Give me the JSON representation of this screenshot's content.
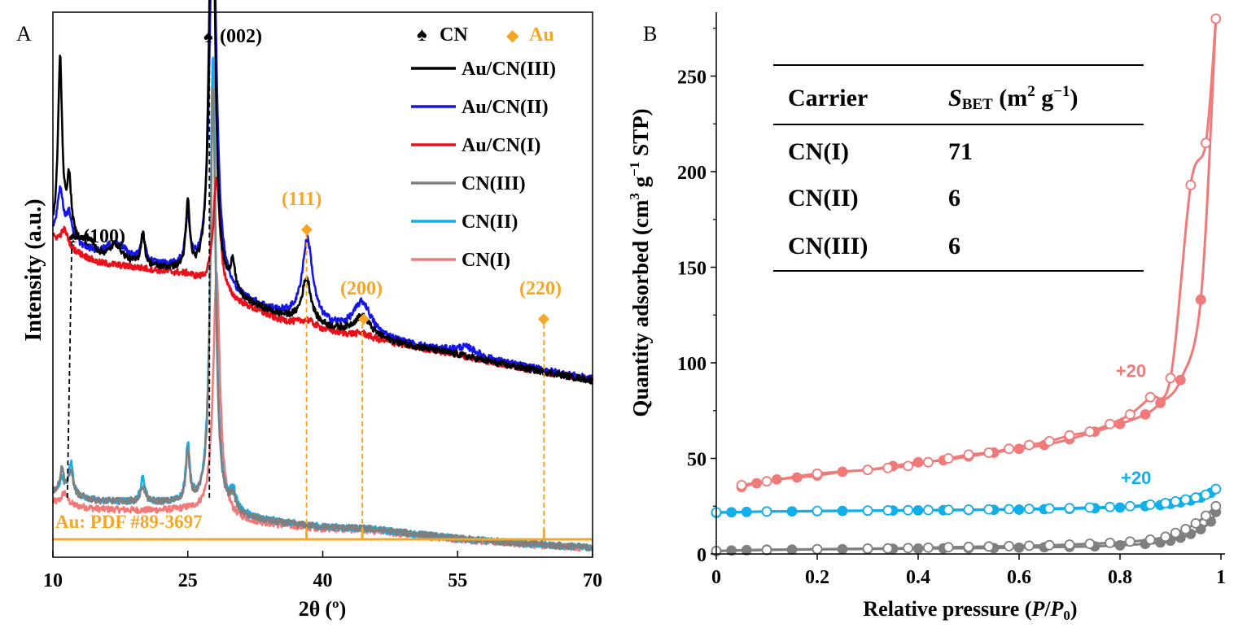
{
  "chart_data": [
    {
      "panel_label": "A",
      "type": "line",
      "xlabel_prefix": "2",
      "xlabel_theta": "θ",
      "xlabel_unit": "(º)",
      "ylabel": "Intensity (a.u.)",
      "xlim": [
        10,
        70
      ],
      "x_ticks": [
        "10",
        "25",
        "40",
        "55",
        "70"
      ],
      "legend_markers": [
        {
          "symbol": "♠",
          "label": "CN",
          "color": "#000000"
        },
        {
          "symbol": "◆",
          "label": "Au",
          "color": "#f5a623"
        }
      ],
      "series": [
        {
          "name": "Au/CN(III)",
          "color": "#000000",
          "group": "upper",
          "baseline": [
            [
              10,
              0.395
            ],
            [
              12,
              0.388
            ],
            [
              15,
              0.37
            ],
            [
              20,
              0.36
            ],
            [
              25,
              0.352
            ],
            [
              30,
              0.32
            ],
            [
              35,
              0.3
            ],
            [
              40,
              0.285
            ],
            [
              45,
              0.272
            ],
            [
              50,
              0.262
            ],
            [
              55,
              0.252
            ],
            [
              60,
              0.24
            ],
            [
              65,
              0.23
            ],
            [
              70,
              0.22
            ]
          ],
          "peaks": [
            [
              10.8,
              0.22,
              0.28
            ],
            [
              11.8,
              0.07,
              0.3
            ],
            [
              14,
              0.015,
              0.8
            ],
            [
              17,
              0.02,
              0.8
            ],
            [
              20,
              0.04,
              0.25
            ],
            [
              25,
              0.08,
              0.25
            ],
            [
              27.7,
              0.62,
              0.35
            ],
            [
              30,
              0.04,
              0.3
            ],
            [
              38.2,
              0.055,
              0.6
            ],
            [
              44.4,
              0.025,
              1.2
            ]
          ]
        },
        {
          "name": "Au/CN(II)",
          "color": "#1515e8",
          "group": "upper",
          "baseline": [
            [
              10,
              0.395
            ],
            [
              12,
              0.388
            ],
            [
              15,
              0.372
            ],
            [
              20,
              0.362
            ],
            [
              25,
              0.355
            ],
            [
              30,
              0.322
            ],
            [
              35,
              0.302
            ],
            [
              40,
              0.287
            ],
            [
              45,
              0.274
            ],
            [
              50,
              0.263
            ],
            [
              55,
              0.253
            ],
            [
              60,
              0.242
            ],
            [
              65,
              0.232
            ],
            [
              70,
              0.222
            ]
          ],
          "peaks": [
            [
              10.8,
              0.06,
              0.4
            ],
            [
              11.8,
              0.03,
              0.4
            ],
            [
              17,
              0.02,
              1.5
            ],
            [
              20,
              0.03,
              0.3
            ],
            [
              25,
              0.06,
              0.3
            ],
            [
              27.8,
              0.49,
              0.45
            ],
            [
              38.3,
              0.1,
              0.7
            ],
            [
              44.4,
              0.04,
              1.2
            ],
            [
              56,
              0.01,
              1.5
            ]
          ]
        },
        {
          "name": "Au/CN(I)",
          "color": "#e8101a",
          "group": "upper",
          "baseline": [
            [
              10,
              0.395
            ],
            [
              12,
              0.38
            ],
            [
              15,
              0.365
            ],
            [
              20,
              0.358
            ],
            [
              25,
              0.35
            ],
            [
              30,
              0.318
            ],
            [
              35,
              0.295
            ],
            [
              40,
              0.282
            ],
            [
              45,
              0.272
            ],
            [
              50,
              0.262
            ],
            [
              55,
              0.252
            ],
            [
              60,
              0.24
            ],
            [
              65,
              0.23
            ],
            [
              70,
              0.222
            ]
          ],
          "peaks": [
            [
              11.3,
              0.02,
              0.5
            ],
            [
              28.2,
              0.14,
              0.45
            ],
            [
              38.3,
              0.008,
              1.0
            ],
            [
              44.4,
              0.005,
              1.0
            ]
          ]
        },
        {
          "name": "CN(III)",
          "color": "#7f7f7f",
          "group": "lower",
          "baseline": [
            [
              10,
              0.062
            ],
            [
              12,
              0.058
            ],
            [
              15,
              0.052
            ],
            [
              20,
              0.05
            ],
            [
              25,
              0.048
            ],
            [
              30,
              0.032
            ],
            [
              35,
              0.025
            ],
            [
              40,
              0.02
            ],
            [
              45,
              0.018
            ],
            [
              50,
              0.012
            ],
            [
              55,
              0.006
            ],
            [
              60,
              0.002
            ],
            [
              65,
              -0.002
            ],
            [
              70,
              -0.005
            ]
          ],
          "peaks": [
            [
              11.0,
              0.03,
              0.3
            ],
            [
              12.0,
              0.03,
              0.3
            ],
            [
              20,
              0.02,
              0.3
            ],
            [
              25,
              0.06,
              0.25
            ],
            [
              27.8,
              0.52,
              0.35
            ],
            [
              30,
              0.02,
              0.4
            ]
          ]
        },
        {
          "name": "CN(II)",
          "color": "#12aee8",
          "group": "lower",
          "baseline": [
            [
              10,
              0.062
            ],
            [
              12,
              0.058
            ],
            [
              15,
              0.052
            ],
            [
              20,
              0.05
            ],
            [
              25,
              0.048
            ],
            [
              30,
              0.034
            ],
            [
              35,
              0.026
            ],
            [
              40,
              0.02
            ],
            [
              45,
              0.018
            ],
            [
              50,
              0.012
            ],
            [
              55,
              0.006
            ],
            [
              60,
              0.002
            ],
            [
              65,
              -0.002
            ],
            [
              70,
              -0.005
            ]
          ],
          "peaks": [
            [
              11.0,
              0.02,
              0.3
            ],
            [
              12.0,
              0.04,
              0.3
            ],
            [
              20,
              0.03,
              0.3
            ],
            [
              25,
              0.07,
              0.25
            ],
            [
              27.8,
              0.56,
              0.35
            ],
            [
              30,
              0.025,
              0.4
            ]
          ]
        },
        {
          "name": "CN(I)",
          "color": "#f07a7a",
          "group": "lower",
          "baseline": [
            [
              10,
              0.05
            ],
            [
              12,
              0.046
            ],
            [
              15,
              0.042
            ],
            [
              20,
              0.04
            ],
            [
              25,
              0.04
            ],
            [
              30,
              0.028
            ],
            [
              35,
              0.022
            ],
            [
              40,
              0.018
            ],
            [
              45,
              0.016
            ],
            [
              50,
              0.01
            ],
            [
              55,
              0.005
            ],
            [
              60,
              0.001
            ],
            [
              65,
              -0.003
            ],
            [
              70,
              -0.006
            ]
          ],
          "peaks": [
            [
              11.3,
              0.015,
              0.4
            ],
            [
              28.2,
              0.3,
              0.45
            ]
          ]
        }
      ],
      "annotations": [
        {
          "label": "(100)",
          "symbol": "♠",
          "x": 12.1,
          "color": "#000000"
        },
        {
          "label": "(002)",
          "symbol": "♠",
          "x": 27.4,
          "color": "#000000"
        },
        {
          "label": "(111)",
          "symbol": "◆",
          "x": 38.2,
          "color": "#f5a623"
        },
        {
          "label": "(200)",
          "symbol": "◆",
          "x": 44.4,
          "color": "#f5a623"
        },
        {
          "label": "(220)",
          "symbol": "◆",
          "x": 64.6,
          "color": "#f5a623"
        }
      ],
      "reference_label": "Au: PDF #89-3697",
      "reference_lines": [
        38.2,
        44.4,
        64.6
      ],
      "reference_color": "#f5a623"
    },
    {
      "panel_label": "B",
      "type": "scatter",
      "xlabel_text": "Relative pressure (",
      "xlabel_var_p": "P",
      "xlabel_slash": "/",
      "xlabel_var_p0": "P",
      "xlabel_sub0": "0",
      "xlabel_close": ")",
      "ylabel_main": "Quantity  adsorbed (cm",
      "ylabel_sup3": "3",
      "ylabel_g": " g",
      "ylabel_sup_neg1": "−1",
      "ylabel_tail": " STP)",
      "xlim": [
        0,
        1
      ],
      "ylim": [
        0,
        280
      ],
      "x_ticks": [
        "0",
        "0.2",
        "0.4",
        "0.6",
        "0.8",
        "1"
      ],
      "y_ticks": [
        "0",
        "50",
        "100",
        "150",
        "200",
        "250"
      ],
      "offset_labels": [
        {
          "text": "+20",
          "color": "#f07a7a",
          "x": 0.84,
          "y": 96
        },
        {
          "text": "+20",
          "color": "#12aee8",
          "x": 0.85,
          "y": 40
        }
      ],
      "series": [
        {
          "name": "CN(I) adsorption",
          "color": "#f07a7a",
          "filled": true,
          "x": [
            0.05,
            0.08,
            0.12,
            0.16,
            0.2,
            0.25,
            0.3,
            0.35,
            0.4,
            0.45,
            0.5,
            0.55,
            0.6,
            0.65,
            0.7,
            0.75,
            0.8,
            0.85,
            0.88,
            0.92,
            0.96,
            0.99
          ],
          "y": [
            35,
            37,
            39,
            40,
            41,
            43,
            44,
            46,
            48,
            49,
            51,
            53,
            55,
            57,
            60,
            64,
            68,
            73,
            79,
            91,
            133,
            280
          ]
        },
        {
          "name": "CN(I) desorption",
          "color": "#f07a7a",
          "filled": false,
          "x": [
            0.99,
            0.97,
            0.94,
            0.9,
            0.86,
            0.82,
            0.78,
            0.74,
            0.7,
            0.66,
            0.62,
            0.58,
            0.54,
            0.5,
            0.46,
            0.42,
            0.38,
            0.34,
            0.3,
            0.2,
            0.1,
            0.05
          ],
          "y": [
            280,
            215,
            193,
            92,
            82,
            73,
            68,
            64,
            62,
            59,
            57,
            55,
            53,
            52,
            50,
            48,
            46,
            45,
            44,
            42,
            38,
            36
          ]
        },
        {
          "name": "CN(II) adsorption",
          "color": "#12aee8",
          "filled": true,
          "x": [
            0,
            0.03,
            0.06,
            0.1,
            0.15,
            0.2,
            0.25,
            0.3,
            0.35,
            0.4,
            0.45,
            0.5,
            0.55,
            0.6,
            0.65,
            0.7,
            0.75,
            0.8,
            0.85,
            0.88,
            0.9,
            0.92,
            0.94,
            0.96,
            0.98,
            0.99
          ],
          "y": [
            21.5,
            21.8,
            22,
            22.2,
            22.3,
            22.4,
            22.5,
            22.6,
            22.7,
            22.8,
            22.9,
            23,
            23.1,
            23.2,
            23.4,
            23.6,
            23.9,
            24.3,
            25,
            25.6,
            26.2,
            27,
            28,
            29.5,
            32,
            34
          ]
        },
        {
          "name": "CN(II) desorption",
          "color": "#12aee8",
          "filled": false,
          "x": [
            0.99,
            0.97,
            0.95,
            0.93,
            0.91,
            0.89,
            0.86,
            0.82,
            0.78,
            0.74,
            0.7,
            0.66,
            0.62,
            0.58,
            0.54,
            0.5,
            0.46,
            0.42,
            0.38,
            0.34,
            0.3,
            0.2,
            0.1,
            0
          ],
          "y": [
            34,
            31,
            29.5,
            28.5,
            27.5,
            26.6,
            25.8,
            25,
            24.6,
            24.3,
            24,
            23.8,
            23.6,
            23.4,
            23.3,
            23.2,
            23.1,
            23,
            22.9,
            22.8,
            22.7,
            22.5,
            22.2,
            21.8
          ]
        },
        {
          "name": "CN(III) adsorption",
          "color": "#7f7f7f",
          "filled": true,
          "x": [
            0,
            0.03,
            0.06,
            0.1,
            0.15,
            0.2,
            0.25,
            0.3,
            0.35,
            0.4,
            0.45,
            0.5,
            0.55,
            0.6,
            0.65,
            0.7,
            0.75,
            0.8,
            0.85,
            0.88,
            0.9,
            0.92,
            0.94,
            0.96,
            0.98,
            0.99
          ],
          "y": [
            1.5,
            1.8,
            2,
            2.2,
            2.3,
            2.4,
            2.5,
            2.6,
            2.7,
            2.8,
            2.9,
            3,
            3.1,
            3.3,
            3.5,
            3.7,
            4,
            4.5,
            5.3,
            6,
            7,
            8.5,
            10.5,
            13,
            17,
            22
          ]
        },
        {
          "name": "CN(III) desorption",
          "color": "#7f7f7f",
          "filled": false,
          "x": [
            0.99,
            0.97,
            0.95,
            0.93,
            0.91,
            0.89,
            0.86,
            0.82,
            0.78,
            0.74,
            0.7,
            0.66,
            0.62,
            0.58,
            0.54,
            0.5,
            0.46,
            0.42,
            0.38,
            0.34,
            0.3,
            0.2,
            0.1,
            0
          ],
          "y": [
            25,
            20,
            16,
            13,
            11,
            9,
            7.5,
            6.5,
            5.8,
            5.3,
            4.9,
            4.6,
            4.3,
            4.1,
            3.9,
            3.7,
            3.5,
            3.3,
            3.1,
            2.9,
            2.8,
            2.5,
            2.1,
            1.6
          ]
        }
      ],
      "table": {
        "header_carrier": "Carrier",
        "header_s": "S",
        "header_sub": "BET",
        "header_unit_open": " (m",
        "header_sup2": "2",
        "header_g": " g",
        "header_sup_neg1": "−1",
        "header_close": ")",
        "rows": [
          {
            "carrier": "CN(I)",
            "value": "71"
          },
          {
            "carrier": "CN(II)",
            "value": "6"
          },
          {
            "carrier": "CN(III)",
            "value": "6"
          }
        ]
      }
    }
  ]
}
